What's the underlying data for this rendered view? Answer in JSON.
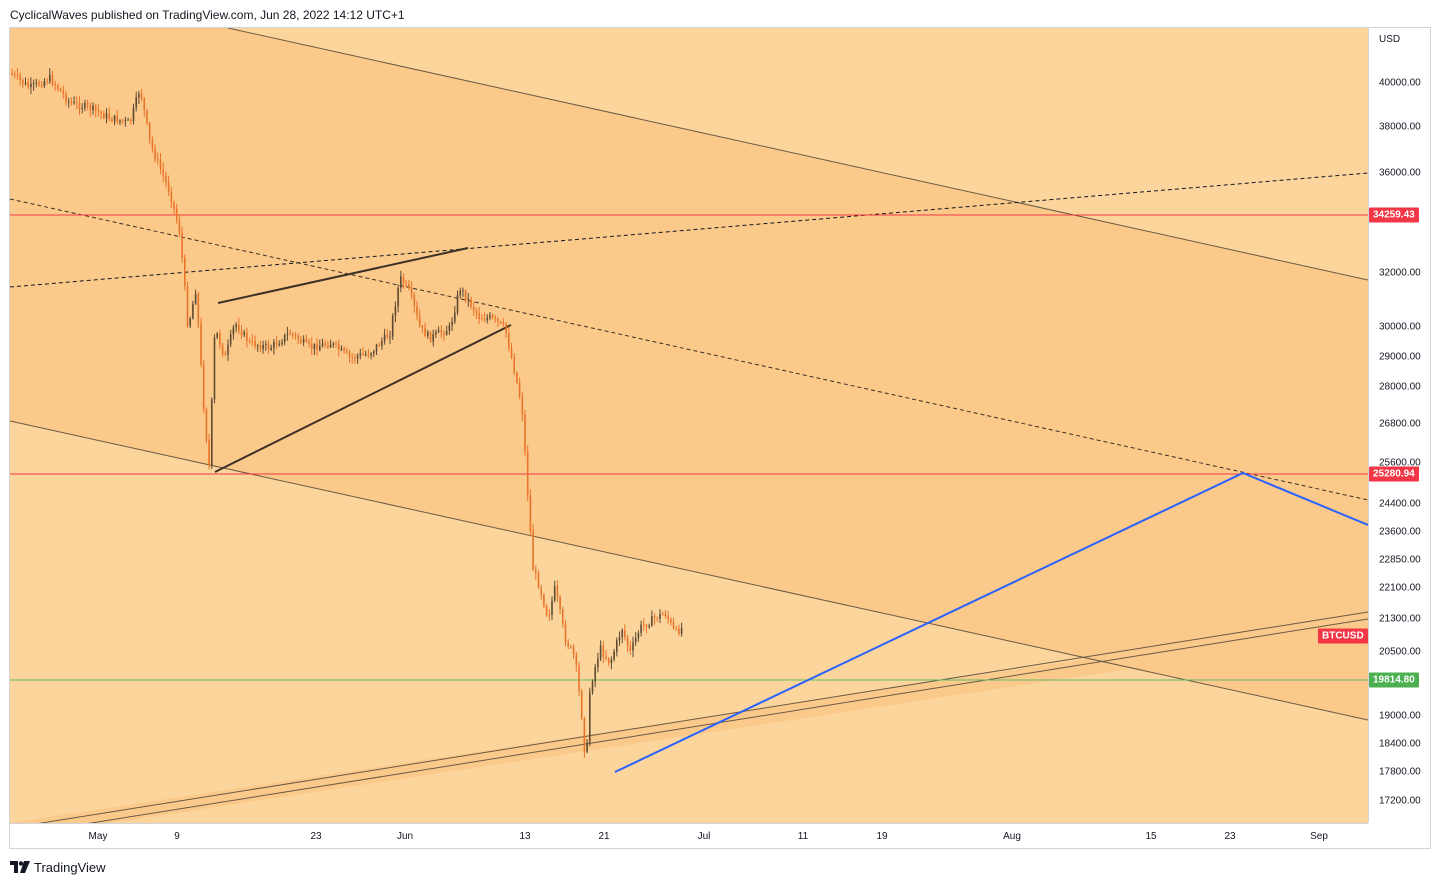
{
  "header": {
    "publisher_line": "CyclicalWaves published on TradingView.com, Jun 28, 2022 14:12 UTC+1"
  },
  "price_axis": {
    "currency": "USD",
    "ticks": [
      "40000.00",
      "38000.00",
      "36000.00",
      "32000.00",
      "30000.00",
      "29000.00",
      "28000.00",
      "26800.00",
      "25600.00",
      "24400.00",
      "23600.00",
      "22850.00",
      "22100.00",
      "21300.00",
      "20500.00",
      "19000.00",
      "18400.00",
      "17800.00",
      "17200.00"
    ]
  },
  "time_axis": {
    "ticks": [
      "May",
      "9",
      "23",
      "Jun",
      "13",
      "21",
      "Jul",
      "11",
      "19",
      "Aug",
      "15",
      "23",
      "Sep"
    ]
  },
  "flags": {
    "upper_red": {
      "label": "34259.43",
      "color": "#f23645"
    },
    "lower_red": {
      "label": "25280.94",
      "color": "#f23645"
    },
    "symbol": {
      "label": "BTCUSD",
      "color": "#f23645"
    },
    "green": {
      "label": "19814.80",
      "color": "#4caf50"
    }
  },
  "colors": {
    "zone_light": "#fbd59b",
    "zone_dark": "#fbc98a",
    "candle_up": "#5d4a33",
    "candle_down": "#e8732a",
    "red_level": "#f23645",
    "green_level": "#66bb6a",
    "blue_path": "#2962ff",
    "trend_line": "#3b3127"
  },
  "footer": {
    "brand": "TradingView",
    "logo_icon": "tradingview-logo-icon"
  }
}
